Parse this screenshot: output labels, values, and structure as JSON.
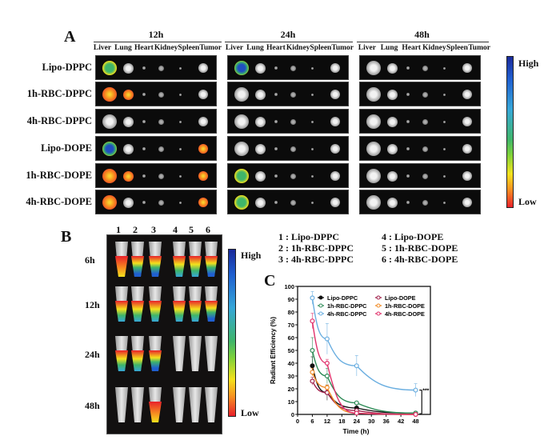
{
  "panelA": {
    "letter": "A",
    "timepoints": [
      "12h",
      "24h",
      "48h"
    ],
    "organs": [
      "Liver",
      "Lung",
      "Heart",
      "Kidney",
      "Spleen",
      "Tumor"
    ],
    "rows": [
      "Lipo-DPPC",
      "1h-RBC-DPPC",
      "4h-RBC-DPPC",
      "Lipo-DOPE",
      "1h-RBC-DOPE",
      "4h-RBC-DOPE"
    ],
    "colorbar": {
      "high": "High",
      "low": "Low"
    }
  },
  "panelB": {
    "letter": "B",
    "tube_numbers": [
      "1",
      "2",
      "3",
      "4",
      "5",
      "6"
    ],
    "timepoints": [
      "6h",
      "12h",
      "24h",
      "48h"
    ],
    "colorbar": {
      "high": "High",
      "low": "Low"
    },
    "legend": [
      "1 : Lipo-DPPC",
      "2 : 1h-RBC-DPPC",
      "3 : 4h-RBC-DPPC",
      "4 : Lipo-DOPE",
      "5 : 1h-RBC-DOPE",
      "6 : 4h-RBC-DOPE"
    ]
  },
  "chart_data": {
    "type": "line",
    "panel_letter": "C",
    "title": "",
    "xlabel": "Time (h)",
    "ylabel": "Radiant Efficiency  (%)",
    "xlim": [
      0,
      54
    ],
    "ylim": [
      0,
      100
    ],
    "xticks": [
      0,
      6,
      12,
      18,
      24,
      30,
      36,
      42,
      48
    ],
    "yticks": [
      0,
      10,
      20,
      30,
      40,
      50,
      60,
      70,
      80,
      90,
      100
    ],
    "grid": false,
    "legend_position": "top-right",
    "x": [
      6,
      12,
      24,
      48
    ],
    "series": [
      {
        "name": "Lipo-DPPC",
        "color": "#111111",
        "values": [
          38,
          17,
          5,
          1
        ],
        "errors": [
          7,
          6,
          3,
          1
        ]
      },
      {
        "name": "1h-RBC-DPPC",
        "color": "#2e8b57",
        "values": [
          50,
          30,
          9,
          1
        ],
        "errors": [
          10,
          6,
          1,
          0.5
        ]
      },
      {
        "name": "4h-RBC-DPPC",
        "color": "#6aaee0",
        "values": [
          91,
          59,
          38,
          19
        ],
        "errors": [
          5,
          12,
          8,
          5
        ]
      },
      {
        "name": "Lipo-DOPE",
        "color": "#a0204a",
        "values": [
          26,
          17,
          3,
          0
        ],
        "errors": [
          3,
          2,
          1,
          0
        ]
      },
      {
        "name": "1h-RBC-DOPE",
        "color": "#f08a24",
        "values": [
          33,
          21,
          1,
          0
        ],
        "errors": [
          3,
          2,
          1,
          0
        ]
      },
      {
        "name": "4h-RBC-DOPE",
        "color": "#e0306a",
        "values": [
          73,
          40,
          1,
          0
        ],
        "errors": [
          6,
          3,
          1,
          0
        ]
      }
    ],
    "annotation": "***"
  }
}
